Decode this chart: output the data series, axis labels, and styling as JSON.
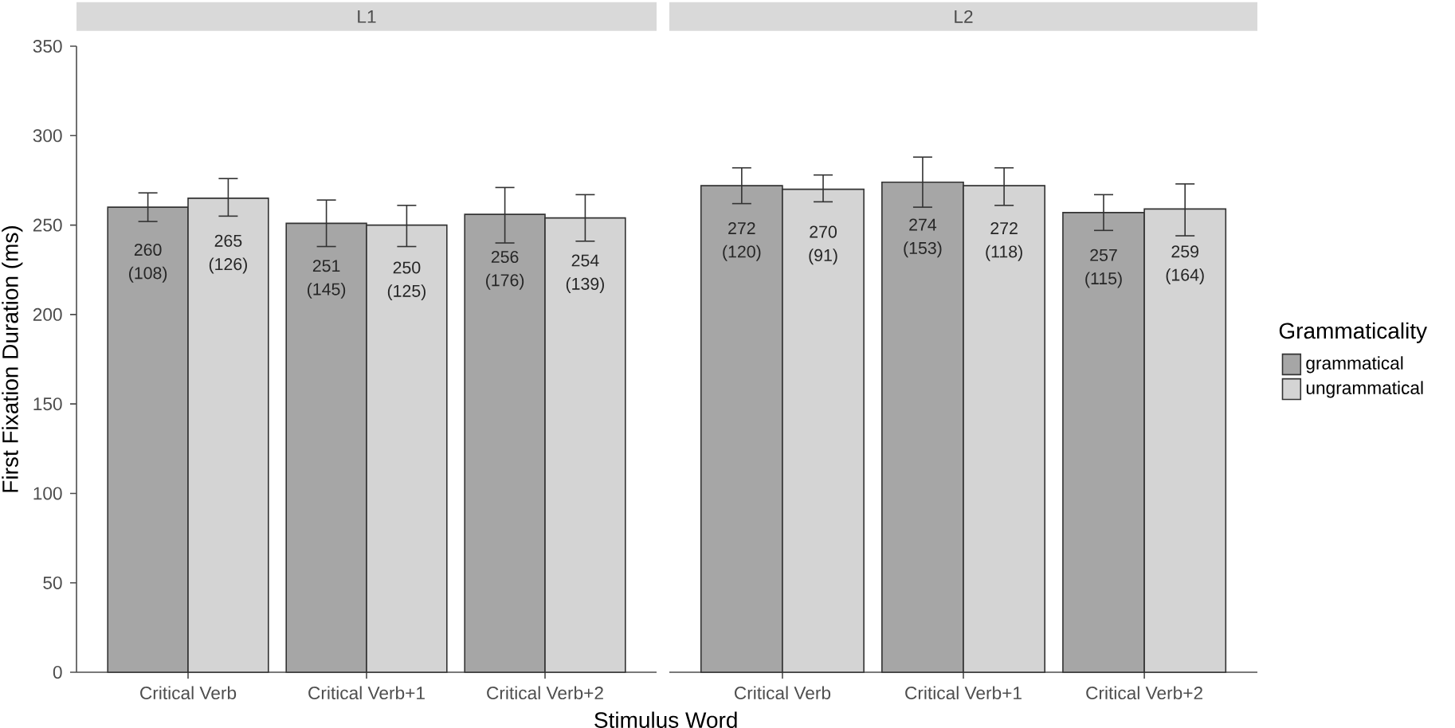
{
  "chart_data": [
    {
      "type": "bar",
      "title": "L1",
      "xlabel": "Stimulus Word",
      "ylabel": "First Fixation Duration (ms)",
      "categories": [
        "Critical Verb",
        "Critical Verb+1",
        "Critical Verb+2"
      ],
      "series": [
        {
          "color": "#a6a6a6",
          "values": [
            260,
            251,
            256
          ],
          "errors": [
            [
              252,
              268
            ],
            [
              238,
              264
            ],
            [
              240,
              271
            ]
          ],
          "value_labels": [
            "260 (108)",
            "251 (145)",
            "256 (176)"
          ]
        },
        {
          "color": "#d4d4d4",
          "values": [
            265,
            250,
            254
          ],
          "errors": [
            [
              255,
              276
            ],
            [
              238,
              261
            ],
            [
              241,
              267
            ]
          ],
          "value_labels": [
            "265 (126)",
            "250 (125)",
            "254 (139)"
          ]
        }
      ],
      "ylim": [
        0,
        350
      ],
      "yticks": [
        0,
        50,
        100,
        150,
        200,
        250,
        300,
        350
      ],
      "grid": false
    },
    {
      "type": "bar",
      "title": "L2",
      "legend_title": "Grammaticality",
      "legend": "right",
      "tick_labels": "x",
      "categories": [
        "Critical Verb",
        "Critical Verb+1",
        "Critical Verb+2"
      ],
      "series": [
        {
          "name": "grammatical",
          "color": "#a6a6a6",
          "values": [
            272,
            274,
            257
          ],
          "errors": [
            [
              262,
              282
            ],
            [
              260,
              288
            ],
            [
              247,
              267
            ]
          ],
          "value_labels": [
            "272 (120)",
            "274 (153)",
            "257 (115)"
          ]
        },
        {
          "name": "ungrammatical",
          "color": "#d4d4d4",
          "values": [
            270,
            272,
            259
          ],
          "errors": [
            [
              263,
              278
            ],
            [
              261,
              282
            ],
            [
              244,
              273
            ]
          ],
          "value_labels": [
            "270 (91)",
            "272 (118)",
            "259 (164)"
          ]
        }
      ],
      "ylim": [
        0,
        350
      ],
      "yticks": [
        0,
        50,
        100,
        150,
        200,
        250,
        300,
        350
      ],
      "grid": false
    }
  ]
}
